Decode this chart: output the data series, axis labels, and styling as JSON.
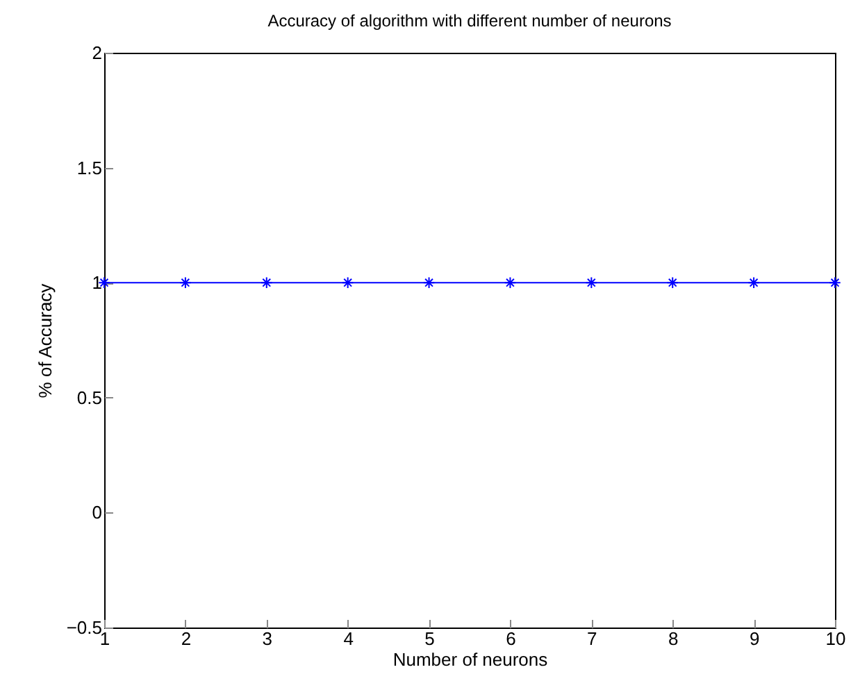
{
  "chart_data": {
    "type": "line",
    "title": "Accuracy of algorithm with different number of neurons",
    "xlabel": "Number of neurons",
    "ylabel": "% of Accuracy",
    "x": [
      1,
      2,
      3,
      4,
      5,
      6,
      7,
      8,
      9,
      10
    ],
    "series": [
      {
        "color": "#0000ff",
        "values": [
          1,
          1,
          1,
          1,
          1,
          1,
          1,
          1,
          1,
          1
        ]
      }
    ],
    "xlim": [
      1,
      10
    ],
    "xticks": [
      1,
      2,
      3,
      4,
      5,
      6,
      7,
      8,
      9,
      10
    ],
    "ylim": [
      -0.5,
      2
    ],
    "yticks": [
      -0.5,
      0,
      0.5,
      1,
      1.5,
      2
    ],
    "grid": false,
    "marker": "cross",
    "line_style": "solid"
  }
}
